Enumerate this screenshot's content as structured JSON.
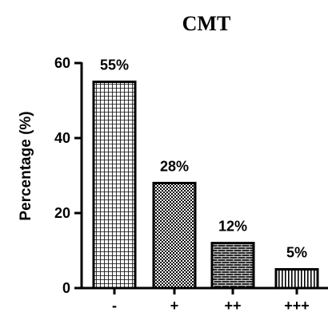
{
  "chart_data": {
    "type": "bar",
    "title": "CMT",
    "xlabel": "",
    "ylabel": "Percentage (%)",
    "categories": [
      "-",
      "+",
      "++",
      "+++"
    ],
    "values": [
      55,
      28,
      12,
      5
    ],
    "data_labels": [
      "55%",
      "28%",
      "12%",
      "5%"
    ],
    "ylim": [
      0,
      60
    ],
    "yticks": [
      0,
      20,
      40,
      60
    ],
    "grid": false,
    "bar_color": "#000000",
    "bar_patterns": [
      "grid",
      "checker",
      "brick",
      "vertical-lines"
    ]
  }
}
